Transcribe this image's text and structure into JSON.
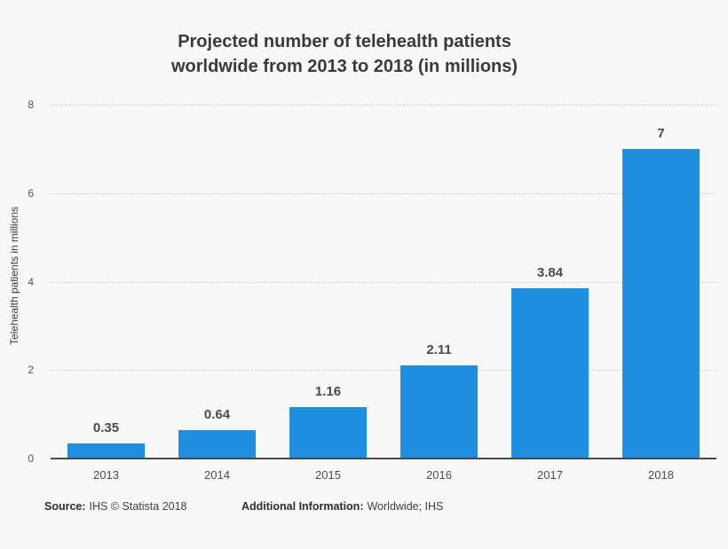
{
  "header": {
    "title_line1": "Projected number of telehealth patients",
    "title_line2": "worldwide from 2013 to 2018 (in millions)"
  },
  "footer": {
    "source_label": "Source:",
    "source_text": "IHS © Statista 2018",
    "additional_label": "Additional Information:",
    "additional_text": "Worldwide; IHS"
  },
  "colors": {
    "background": "#f8f8f8",
    "bar": "#1e8fe1",
    "grid": "#cfcfcf",
    "axis_line": "#4a4a4a",
    "title_text": "#3a3a3a",
    "value_label_text": "#4a4a4a"
  },
  "chart_data": {
    "type": "bar",
    "title": "Projected number of telehealth patients worldwide from 2013 to 2018 (in millions)",
    "categories": [
      "2013",
      "2014",
      "2015",
      "2016",
      "2017",
      "2018"
    ],
    "values": [
      0.35,
      0.64,
      1.16,
      2.11,
      3.84,
      7
    ],
    "value_labels": [
      "0.35",
      "0.64",
      "1.16",
      "2.11",
      "3.84",
      "7"
    ],
    "xlabel": "",
    "ylabel": "Telehealth patients in millions",
    "ylim": [
      0,
      8
    ],
    "yticks": [
      0,
      2,
      4,
      6,
      8
    ],
    "grid": "horizontal-dashed",
    "legend": "none"
  }
}
